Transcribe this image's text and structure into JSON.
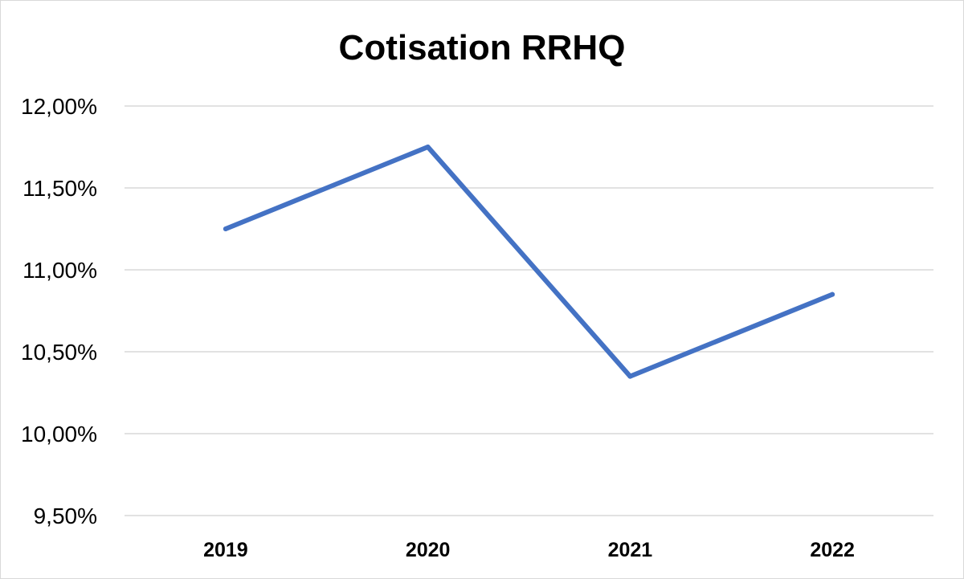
{
  "chart_data": {
    "type": "line",
    "title": "Cotisation RRHQ",
    "xlabel": "",
    "ylabel": "",
    "categories": [
      "2019",
      "2020",
      "2021",
      "2022"
    ],
    "series": [
      {
        "values": [
          11.25,
          11.75,
          10.35,
          10.85
        ],
        "color": "#4472c4"
      }
    ],
    "ylim": [
      9.5,
      12.0
    ],
    "yticks": [
      9.5,
      10.0,
      10.5,
      11.0,
      11.5,
      12.0
    ],
    "ytick_labels": [
      "9,50%",
      "10,00%",
      "10,50%",
      "11,00%",
      "11,50%",
      "12,00%"
    ],
    "grid": true,
    "legend": "none",
    "gridline_color": "#d9d9d9"
  }
}
